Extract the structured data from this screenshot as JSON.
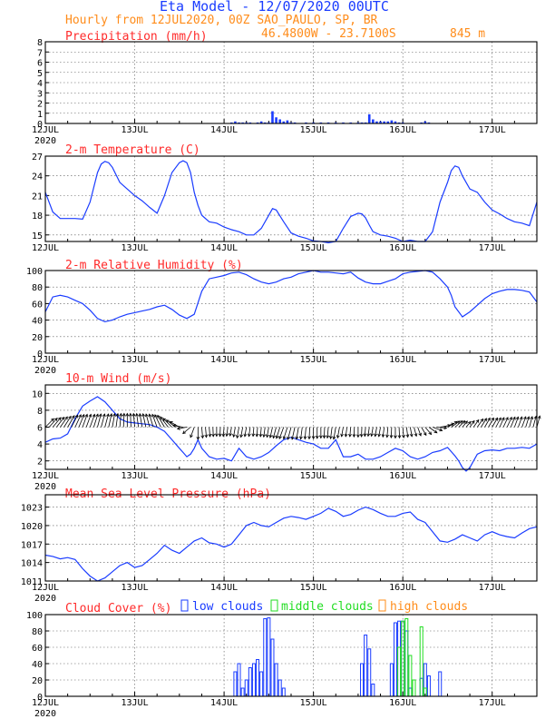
{
  "header": {
    "title": "Eta Model - 12/07/2020 00UTC",
    "subtitle": "Hourly from 12JUL2020, 00Z  SAO_PAULO, SP, BR",
    "location": "46.4800W - 23.7100S",
    "elevation": "845  m"
  },
  "colors": {
    "title": "#1a3cff",
    "subtitle": "#ff8c1a",
    "panel_title": "#ff2a2a",
    "series": "#1a3cff",
    "wind_arrows": "#000000",
    "grid": "#555555",
    "low_clouds": "#1a3cff",
    "middle_clouds": "#22dd22",
    "high_clouds": "#ff8c1a"
  },
  "x_axis": {
    "ticks": [
      "12JUL",
      "13JUL",
      "14JUL",
      "15JUL",
      "16JUL",
      "17JUL"
    ],
    "year": "2020",
    "hours_total": 132
  },
  "chart_data": [
    {
      "type": "bar",
      "title": "Precipitation (mm/h)",
      "ylim": [
        0,
        8
      ],
      "yticks": [
        "0",
        "1",
        "2",
        "3",
        "4",
        "5",
        "6",
        "7",
        "8"
      ],
      "bars": [
        [
          50,
          0.1
        ],
        [
          51,
          0.2
        ],
        [
          52,
          0.1
        ],
        [
          53,
          0.1
        ],
        [
          54,
          0.1
        ],
        [
          55,
          0.1
        ],
        [
          57,
          0.1
        ],
        [
          58,
          0.2
        ],
        [
          59,
          0.1
        ],
        [
          60,
          0.1
        ],
        [
          61,
          1.2
        ],
        [
          62,
          0.6
        ],
        [
          63,
          0.4
        ],
        [
          64,
          0.2
        ],
        [
          65,
          0.3
        ],
        [
          66,
          0.1
        ],
        [
          67,
          0.1
        ],
        [
          70,
          0.1
        ],
        [
          72,
          0.1
        ],
        [
          74,
          0.1
        ],
        [
          76,
          0.1
        ],
        [
          78,
          0.1
        ],
        [
          80,
          0.1
        ],
        [
          82,
          0.1
        ],
        [
          84,
          0.1
        ],
        [
          85,
          0.1
        ],
        [
          86,
          0.1
        ],
        [
          87,
          0.9
        ],
        [
          88,
          0.4
        ],
        [
          89,
          0.2
        ],
        [
          90,
          0.2
        ],
        [
          91,
          0.2
        ],
        [
          92,
          0.2
        ],
        [
          93,
          0.3
        ],
        [
          94,
          0.2
        ],
        [
          95,
          0.1
        ],
        [
          96,
          0.1
        ],
        [
          101,
          0.1
        ],
        [
          102,
          0.2
        ],
        [
          103,
          0.1
        ]
      ]
    },
    {
      "type": "line",
      "title": "2-m Temperature (C)",
      "ylim": [
        14,
        27
      ],
      "yticks": [
        "15",
        "18",
        "21",
        "24",
        "27"
      ],
      "x": [
        0,
        2,
        4,
        6,
        8,
        10,
        12,
        14,
        15,
        16,
        17,
        18,
        20,
        22,
        24,
        26,
        28,
        30,
        32,
        34,
        36,
        37,
        38,
        39,
        40,
        41,
        42,
        44,
        46,
        48,
        50,
        52,
        54,
        56,
        58,
        60,
        61,
        62,
        64,
        66,
        68,
        70,
        72,
        74,
        76,
        78,
        80,
        82,
        84,
        85,
        86,
        87,
        88,
        90,
        92,
        94,
        96,
        98,
        100,
        102,
        104,
        106,
        108,
        109,
        110,
        111,
        112,
        114,
        116,
        118,
        120,
        122,
        124,
        126,
        128,
        130,
        132
      ],
      "values": [
        21.5,
        18.5,
        17.5,
        17.5,
        17.5,
        17.4,
        20.0,
        24.5,
        25.8,
        26.2,
        26.0,
        25.3,
        23.0,
        22.0,
        21.0,
        20.2,
        19.2,
        18.3,
        21.0,
        24.5,
        26.0,
        26.3,
        26.0,
        24.5,
        21.5,
        19.5,
        18.0,
        17.0,
        16.8,
        16.2,
        15.8,
        15.5,
        15.0,
        15.0,
        16.0,
        18.0,
        19.0,
        18.8,
        17.0,
        15.3,
        14.8,
        14.5,
        14.1,
        14.0,
        13.8,
        14.0,
        16.0,
        17.8,
        18.3,
        18.2,
        17.6,
        16.5,
        15.5,
        15.0,
        14.8,
        14.5,
        14.0,
        14.2,
        14.0,
        14.0,
        15.5,
        20.0,
        23.0,
        24.8,
        25.5,
        25.3,
        24.0,
        22.0,
        21.5,
        20.0,
        18.8,
        18.2,
        17.5,
        17.0,
        16.8,
        16.4,
        20.0
      ]
    },
    {
      "type": "line",
      "title": "2-m Relative Humidity (%)",
      "ylim": [
        0,
        100
      ],
      "yticks": [
        "0",
        "20",
        "40",
        "60",
        "80",
        "100"
      ],
      "x": [
        0,
        2,
        4,
        6,
        8,
        10,
        12,
        14,
        16,
        18,
        20,
        22,
        24,
        26,
        28,
        30,
        32,
        34,
        36,
        38,
        40,
        42,
        44,
        46,
        48,
        50,
        52,
        54,
        56,
        58,
        60,
        62,
        64,
        66,
        68,
        70,
        72,
        74,
        76,
        78,
        80,
        82,
        84,
        86,
        88,
        90,
        92,
        94,
        96,
        98,
        100,
        102,
        104,
        106,
        108,
        109,
        110,
        112,
        114,
        116,
        118,
        120,
        122,
        124,
        126,
        128,
        130,
        132
      ],
      "values": [
        50,
        68,
        70,
        68,
        64,
        60,
        52,
        42,
        38,
        40,
        44,
        47,
        49,
        51,
        53,
        56,
        58,
        53,
        46,
        42,
        47,
        75,
        90,
        92,
        94,
        97,
        98,
        95,
        90,
        86,
        84,
        86,
        90,
        92,
        96,
        98,
        100,
        98,
        98,
        97,
        96,
        98,
        91,
        86,
        84,
        84,
        87,
        90,
        96,
        98,
        99,
        100,
        98,
        90,
        80,
        70,
        56,
        44,
        50,
        58,
        66,
        72,
        75,
        77,
        77,
        76,
        74,
        62
      ]
    },
    {
      "type": "line",
      "title": "10-m Wind (m/s)",
      "ylim": [
        1,
        11
      ],
      "yticks": [
        "2",
        "4",
        "6",
        "8",
        "10"
      ],
      "x": [
        0,
        2,
        4,
        6,
        8,
        10,
        12,
        14,
        16,
        18,
        20,
        22,
        24,
        26,
        28,
        30,
        32,
        34,
        36,
        37,
        38,
        39,
        40,
        41,
        42,
        44,
        46,
        48,
        50,
        52,
        54,
        56,
        58,
        60,
        62,
        64,
        66,
        68,
        70,
        72,
        74,
        76,
        78,
        80,
        82,
        84,
        86,
        88,
        90,
        92,
        94,
        96,
        98,
        100,
        102,
        104,
        106,
        108,
        110,
        111,
        112,
        113,
        114,
        116,
        118,
        120,
        122,
        124,
        126,
        128,
        130,
        132
      ],
      "values": [
        4.2,
        4.6,
        4.7,
        5.2,
        7.0,
        8.5,
        9.1,
        9.6,
        9.0,
        8.0,
        7.0,
        6.6,
        6.5,
        6.4,
        6.3,
        6.0,
        5.5,
        4.5,
        3.5,
        3.0,
        2.5,
        2.8,
        3.5,
        4.5,
        3.5,
        2.5,
        2.2,
        2.3,
        2.0,
        3.5,
        2.5,
        2.2,
        2.5,
        3.0,
        3.8,
        4.5,
        4.8,
        4.5,
        4.2,
        4.0,
        3.5,
        3.5,
        4.5,
        2.5,
        2.5,
        2.8,
        2.2,
        2.2,
        2.5,
        3.0,
        3.5,
        3.2,
        2.5,
        2.2,
        2.5,
        3.0,
        3.2,
        3.6,
        2.6,
        2.0,
        1.2,
        0.8,
        1.2,
        2.8,
        3.2,
        3.3,
        3.2,
        3.5,
        3.5,
        3.6,
        3.5,
        4.0
      ],
      "wind_dir_deg": [
        315,
        320,
        325,
        330,
        335,
        340,
        340,
        345,
        345,
        350,
        355,
        0,
        5,
        10,
        15,
        20,
        30,
        45,
        60,
        80,
        100,
        130,
        160,
        180,
        185,
        185,
        180,
        175,
        170,
        170,
        170,
        175,
        175,
        170,
        165,
        160,
        165,
        170,
        175,
        180,
        180,
        175,
        170,
        170,
        175,
        180,
        175,
        170,
        170,
        175,
        180,
        185,
        190,
        200,
        220,
        250,
        280,
        300,
        310,
        315,
        320,
        320,
        325,
        325,
        330,
        330,
        335,
        335,
        340,
        340,
        345,
        345
      ]
    },
    {
      "type": "line",
      "title": "Mean Sea Level Pressure (hPa)",
      "ylim": [
        1011,
        1025
      ],
      "yticks": [
        "1011",
        "1014",
        "1017",
        "1020",
        "1023"
      ],
      "x": [
        0,
        2,
        4,
        6,
        8,
        10,
        12,
        14,
        16,
        18,
        20,
        22,
        24,
        26,
        28,
        30,
        32,
        34,
        36,
        38,
        40,
        42,
        44,
        46,
        48,
        50,
        52,
        54,
        56,
        58,
        60,
        62,
        64,
        66,
        68,
        70,
        72,
        74,
        76,
        78,
        80,
        82,
        84,
        86,
        88,
        90,
        92,
        94,
        96,
        98,
        100,
        102,
        104,
        106,
        108,
        110,
        112,
        114,
        116,
        118,
        120,
        122,
        124,
        126,
        128,
        130,
        132
      ],
      "values": [
        1015.2,
        1015.0,
        1014.6,
        1014.8,
        1014.5,
        1013.0,
        1011.8,
        1011.0,
        1011.5,
        1012.5,
        1013.5,
        1014.0,
        1013.2,
        1013.5,
        1014.5,
        1015.5,
        1016.8,
        1016.0,
        1015.5,
        1016.5,
        1017.5,
        1018.0,
        1017.2,
        1017.0,
        1016.5,
        1017.0,
        1018.5,
        1020.0,
        1020.5,
        1020.0,
        1019.8,
        1020.5,
        1021.2,
        1021.5,
        1021.3,
        1021.0,
        1021.5,
        1022.0,
        1022.8,
        1022.3,
        1021.5,
        1021.8,
        1022.5,
        1023.0,
        1022.6,
        1022.0,
        1021.5,
        1021.5,
        1022.0,
        1022.2,
        1021.0,
        1020.5,
        1019.0,
        1017.5,
        1017.3,
        1017.8,
        1018.5,
        1018.0,
        1017.5,
        1018.5,
        1019.0,
        1018.5,
        1018.2,
        1018.0,
        1018.8,
        1019.5,
        1019.8
      ]
    },
    {
      "type": "bar",
      "title": "Cloud Cover (%)",
      "ylim": [
        0,
        100
      ],
      "yticks": [
        "0",
        "20",
        "40",
        "60",
        "80",
        "100"
      ],
      "legend": [
        "low clouds",
        "middle clouds",
        "high clouds"
      ],
      "series": [
        {
          "name": "low clouds",
          "bars": [
            [
              51,
              30
            ],
            [
              52,
              40
            ],
            [
              53,
              10
            ],
            [
              54,
              20
            ],
            [
              55,
              35
            ],
            [
              56,
              40
            ],
            [
              57,
              45
            ],
            [
              58,
              30
            ],
            [
              59,
              95
            ],
            [
              60,
              96
            ],
            [
              61,
              70
            ],
            [
              62,
              40
            ],
            [
              63,
              20
            ],
            [
              64,
              10
            ],
            [
              85,
              40
            ],
            [
              86,
              75
            ],
            [
              87,
              58
            ],
            [
              88,
              15
            ],
            [
              93,
              40
            ],
            [
              94,
              90
            ],
            [
              95,
              92
            ],
            [
              96,
              92
            ],
            [
              97,
              80
            ],
            [
              98,
              10
            ],
            [
              101,
              22
            ],
            [
              102,
              40
            ],
            [
              103,
              25
            ],
            [
              106,
              30
            ]
          ]
        },
        {
          "name": "middle clouds",
          "bars": [
            [
              95,
              60
            ],
            [
              96,
              92
            ],
            [
              97,
              95
            ],
            [
              98,
              50
            ],
            [
              99,
              20
            ],
            [
              101,
              85
            ],
            [
              102,
              10
            ]
          ]
        },
        {
          "name": "high clouds",
          "bars": []
        }
      ]
    }
  ]
}
